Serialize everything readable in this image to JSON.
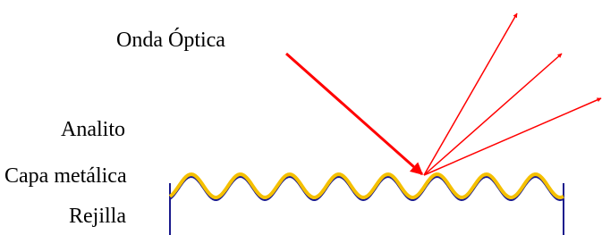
{
  "labels": {
    "wave": "Onda Óptica",
    "analyte": "Analito",
    "metal_layer": "Capa metálica",
    "grating": "Rejilla"
  }
}
